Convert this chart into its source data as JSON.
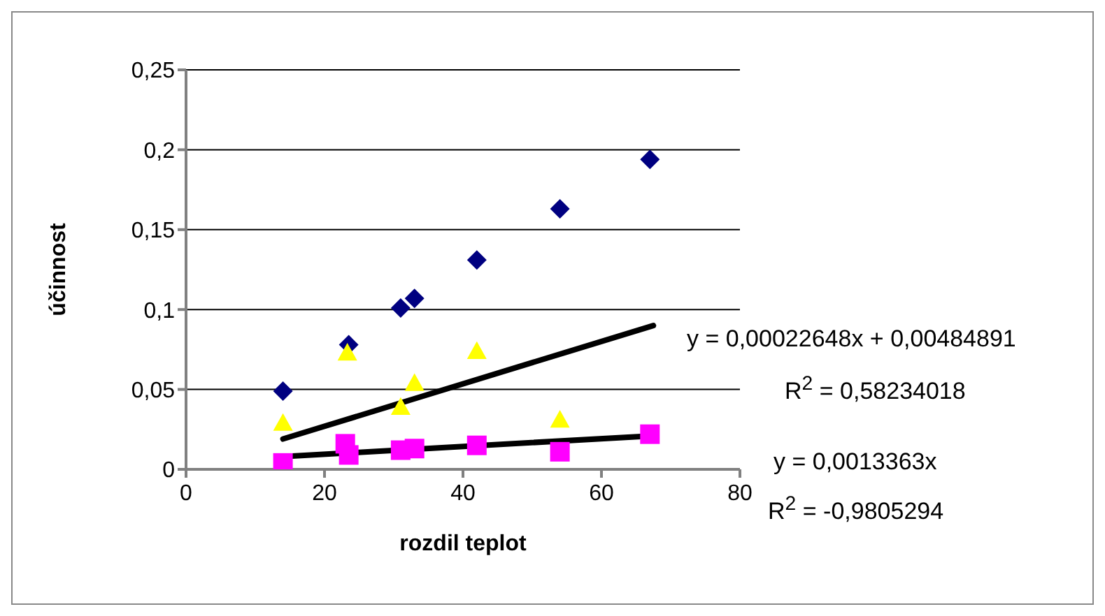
{
  "chart_data": {
    "type": "scatter",
    "xlabel": "rozdil teplot",
    "ylabel": "účinnost",
    "xlim": [
      0,
      80
    ],
    "xticks": [
      0,
      20,
      40,
      60,
      80
    ],
    "ylim": [
      0,
      0.25
    ],
    "yticks": [
      {
        "value": 0,
        "label": "0"
      },
      {
        "value": 0.05,
        "label": "0,05"
      },
      {
        "value": 0.1,
        "label": "0,1"
      },
      {
        "value": 0.15,
        "label": "0,15"
      },
      {
        "value": 0.2,
        "label": "0,2"
      },
      {
        "value": 0.25,
        "label": "0,25"
      }
    ],
    "grid": "y",
    "series": [
      {
        "color": "#000080",
        "marker": "diamond",
        "x": [
          14,
          23.5,
          31,
          33,
          42,
          54,
          67
        ],
        "values": [
          0.049,
          0.078,
          0.101,
          0.107,
          0.131,
          0.163,
          0.194
        ]
      },
      {
        "color": "#ffff00",
        "marker": "triangle",
        "x": [
          14,
          23.3,
          31,
          33,
          42,
          54
        ],
        "values": [
          0.029,
          0.073,
          0.039,
          0.054,
          0.074,
          0.031
        ]
      },
      {
        "color": "#ff00ff",
        "marker": "square",
        "x": [
          14,
          23,
          23.5,
          31,
          33,
          42,
          54,
          67
        ],
        "values": [
          0.004,
          0.016,
          0.009,
          0.012,
          0.013,
          0.015,
          0.011,
          0.022
        ]
      },
      {
        "type": "line",
        "color": "#000000",
        "marker": "none",
        "x": [
          14,
          67.5
        ],
        "values": [
          0.019,
          0.09
        ]
      },
      {
        "type": "line",
        "color": "#000000",
        "marker": "none",
        "x": [
          14,
          67.5
        ],
        "values": [
          0.008,
          0.021
        ]
      }
    ],
    "annotations": [
      "y = 0,00022648x + 0,00484891",
      "R$^{2}$ = 0,58234018",
      "y = 0,0013363x",
      "R$^{2}$ = -0,9805294"
    ]
  }
}
